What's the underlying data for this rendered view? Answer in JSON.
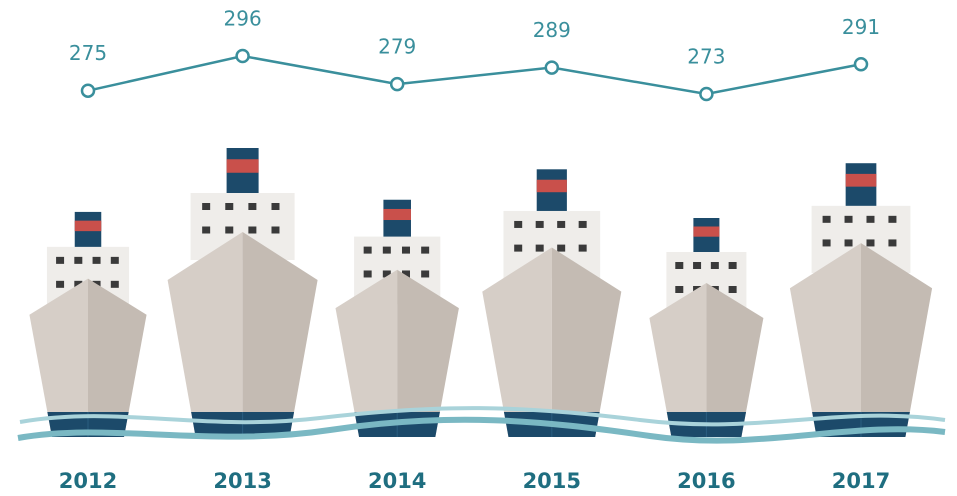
{
  "chart_data": {
    "type": "line",
    "categories": [
      "2012",
      "2013",
      "2014",
      "2015",
      "2016",
      "2017"
    ],
    "values": [
      275,
      296,
      279,
      289,
      273,
      291
    ],
    "color": "#3a8f9c"
  }
}
